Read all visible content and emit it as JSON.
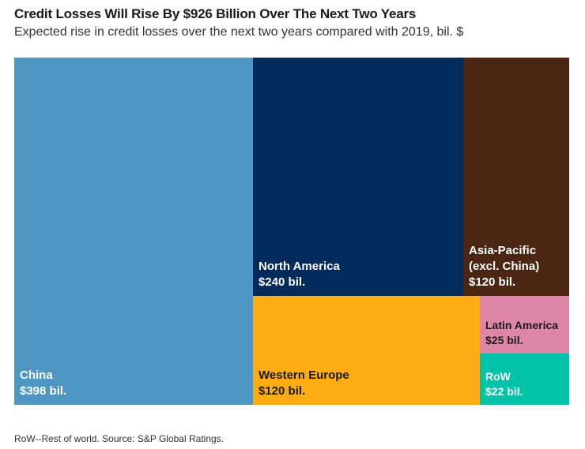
{
  "header": {
    "title": "Credit Losses Will Rise By $926 Billion Over The Next Two Years",
    "subtitle": "Expected rise in credit losses over the next two years compared with 2019, bil. $"
  },
  "footnote": "RoW--Rest of world. Source: S&P Global Ratings.",
  "chart_data": {
    "type": "treemap",
    "title": "Credit Losses Will Rise By $926 Billion Over The Next Two Years",
    "subtitle": "Expected rise in credit losses over the next two years compared with 2019, bil. $",
    "unit": "bil. $",
    "total": 926,
    "categories": [
      "China",
      "North America",
      "Western Europe",
      "Asia-Pacific (excl. China)",
      "Latin America",
      "RoW"
    ],
    "values": [
      398,
      240,
      120,
      120,
      25,
      22
    ],
    "tiles": [
      {
        "name": "China",
        "value": 398,
        "label": "China\n$398 bil.",
        "color": "#4e97c2"
      },
      {
        "name": "North America",
        "value": 240,
        "label": "North America\n$240 bil.",
        "color": "#022b5b"
      },
      {
        "name": "Asia-Pacific (excl. China)",
        "value": 120,
        "label": "Asia-Pacific\n(excl. China)\n$120 bil.",
        "color": "#4b2612"
      },
      {
        "name": "Western Europe",
        "value": 120,
        "label": "Western Europe\n$120 bil.",
        "color": "#fdac14"
      },
      {
        "name": "Latin America",
        "value": 25,
        "label": "Latin America\n$25 bil.",
        "color": "#de86a5"
      },
      {
        "name": "RoW",
        "value": 22,
        "label": "RoW\n$22 bil.",
        "color": "#00c3a7"
      }
    ]
  }
}
